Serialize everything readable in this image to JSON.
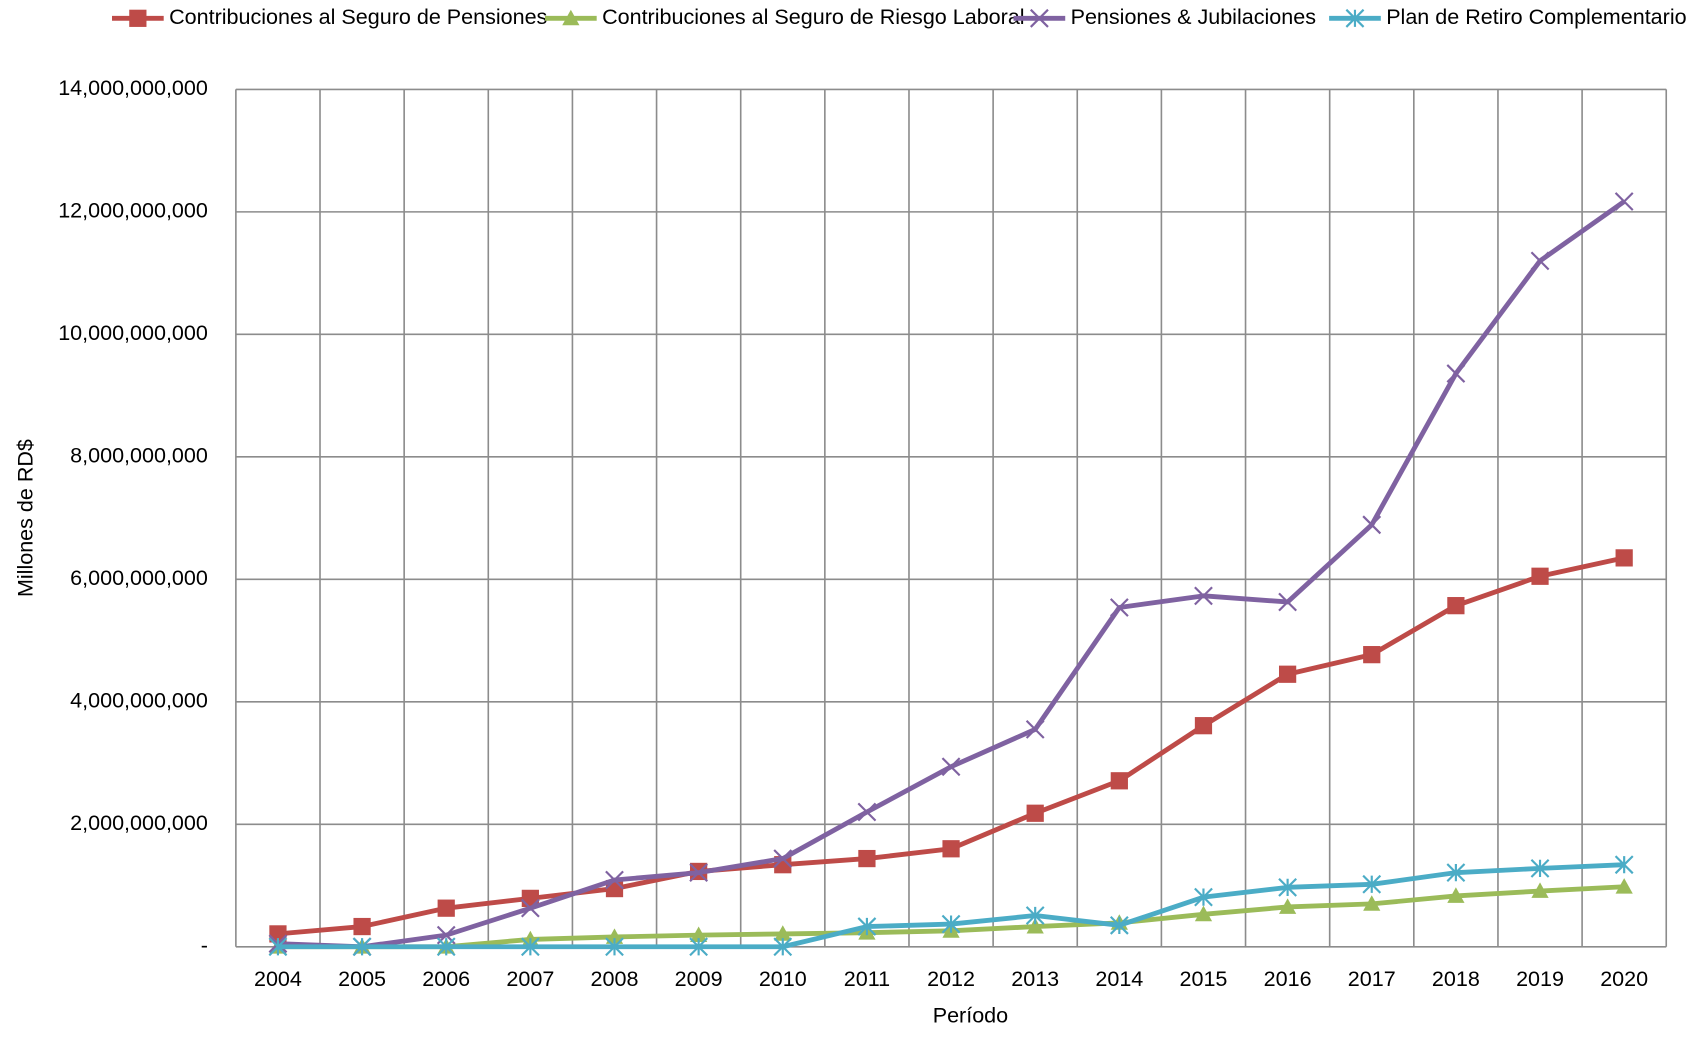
{
  "chart_data": {
    "type": "line",
    "x_label": "Período",
    "y_label": "Millones de RD$",
    "categories": [
      "2004",
      "2005",
      "2006",
      "2007",
      "2008",
      "2009",
      "2010",
      "2011",
      "2012",
      "2013",
      "2014",
      "2015",
      "2016",
      "2017",
      "2018",
      "2019",
      "2020"
    ],
    "series": [
      {
        "name": "Contribuciones al Seguro de Pensiones",
        "color": "#be4b48",
        "marker": "square",
        "values": [
          210000000,
          330000000,
          630000000,
          790000000,
          950000000,
          1230000000,
          1340000000,
          1440000000,
          1600000000,
          2180000000,
          2710000000,
          3610000000,
          4450000000,
          4770000000,
          5570000000,
          6050000000,
          6350000000
        ]
      },
      {
        "name": "Contribuciones al Seguro de Riesgo Laboral",
        "color": "#9bbb59",
        "marker": "triangle",
        "values": [
          0,
          0,
          0,
          120000000,
          160000000,
          190000000,
          210000000,
          230000000,
          260000000,
          330000000,
          390000000,
          530000000,
          650000000,
          700000000,
          830000000,
          910000000,
          980000000
        ]
      },
      {
        "name": "Pensiones & Jubilaciones",
        "color": "#7f62a1",
        "marker": "x",
        "values": [
          50000000,
          0,
          190000000,
          630000000,
          1090000000,
          1210000000,
          1440000000,
          2200000000,
          2940000000,
          3550000000,
          5540000000,
          5730000000,
          5630000000,
          6890000000,
          9360000000,
          11200000000,
          12170000000
        ]
      },
      {
        "name": "Plan de Retiro Complementario",
        "color": "#4bacc6",
        "marker": "star",
        "values": [
          0,
          0,
          0,
          0,
          0,
          0,
          0,
          330000000,
          370000000,
          510000000,
          350000000,
          810000000,
          970000000,
          1020000000,
          1210000000,
          1280000000,
          1340000000
        ]
      }
    ],
    "ylim": [
      0,
      14000000000
    ],
    "yticks": [
      {
        "value": 0,
        "label": "-"
      },
      {
        "value": 2000000000,
        "label": "2,000,000,000"
      },
      {
        "value": 4000000000,
        "label": "4,000,000,000"
      },
      {
        "value": 6000000000,
        "label": "6,000,000,000"
      },
      {
        "value": 8000000000,
        "label": "8,000,000,000"
      },
      {
        "value": 10000000000,
        "label": "10,000,000,000"
      },
      {
        "value": 12000000000,
        "label": "12,000,000,000"
      },
      {
        "value": 14000000000,
        "label": "14,000,000,000"
      }
    ],
    "grid": true,
    "legend": "top"
  }
}
